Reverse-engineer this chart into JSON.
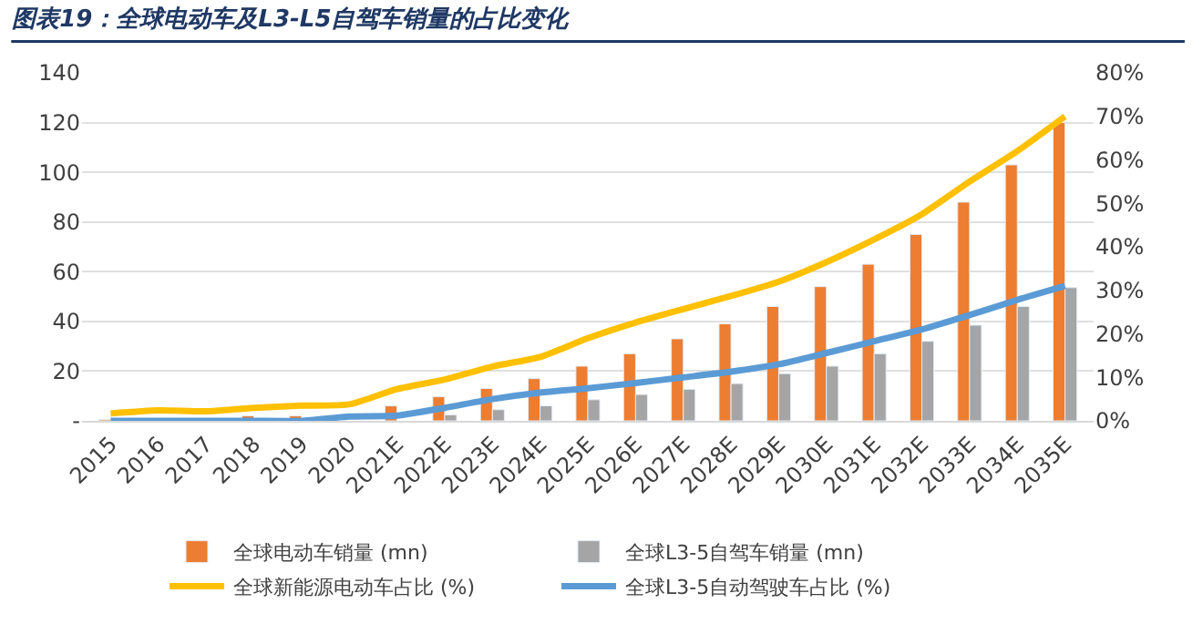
{
  "chart_data": {
    "type": "bar",
    "title": "图表19：全球电动车及L3-L5自驾车销量的占比变化",
    "categories": [
      "2015",
      "2016",
      "2017",
      "2018",
      "2019",
      "2020",
      "2021E",
      "2022E",
      "2023E",
      "2024E",
      "2025E",
      "2026E",
      "2027E",
      "2028E",
      "2029E",
      "2030E",
      "2031E",
      "2032E",
      "2033E",
      "2034E",
      "2035E"
    ],
    "series": [
      {
        "name": "全球电动车销量 (mn)",
        "color": "#ed7d31",
        "values": [
          0.5,
          0.8,
          null,
          2,
          2,
          null,
          6,
          9.7,
          13,
          17,
          22,
          27,
          33,
          39,
          46,
          54,
          63,
          75,
          88,
          103,
          120
        ]
      },
      {
        "name": "全球L3-5自驾车销量 (mn)",
        "color": "#a5a5a5",
        "values": [
          null,
          null,
          null,
          null,
          null,
          null,
          null,
          2.4,
          4.5,
          6,
          8.5,
          10.6,
          12.7,
          15,
          19,
          22,
          27,
          32,
          38.5,
          46,
          53.6
        ]
      },
      {
        "name": "全球新能源电动车占比 (%)",
        "color": "#ffc000",
        "type": "line",
        "axis": "y2",
        "values": [
          1.7,
          2.4,
          2.2,
          3,
          3.5,
          3.8,
          7.3,
          9.5,
          12.5,
          14.7,
          19,
          22.6,
          25.7,
          28.7,
          32,
          36.5,
          41.7,
          47.5,
          55,
          62,
          70
        ]
      },
      {
        "name": "全球L3-5自动驾驶车占比 (%)",
        "color": "#5b9bd5",
        "type": "line",
        "axis": "y2",
        "values": [
          0,
          0,
          0,
          0,
          0,
          1,
          1.2,
          3,
          5,
          6.5,
          7.5,
          8.7,
          10,
          11.3,
          13,
          15.6,
          18.3,
          21,
          24.3,
          27.8,
          31
        ]
      }
    ],
    "ylim": [
      0,
      140
    ],
    "yticks": [
      {
        "value": 0,
        "label": "-"
      },
      20,
      40,
      60,
      80,
      100,
      120,
      140
    ],
    "y2lim": [
      0,
      80
    ],
    "y2ticks": [
      {
        "value": 0,
        "label": "0%"
      },
      {
        "value": 10,
        "label": "10%"
      },
      {
        "value": 20,
        "label": "20%"
      },
      {
        "value": 30,
        "label": "30%"
      },
      {
        "value": 40,
        "label": "40%"
      },
      {
        "value": 50,
        "label": "50%"
      },
      {
        "value": 60,
        "label": "60%"
      },
      {
        "value": 70,
        "label": "70%"
      },
      {
        "value": 80,
        "label": "80%"
      }
    ],
    "grid": "y",
    "legend": "bottom"
  }
}
